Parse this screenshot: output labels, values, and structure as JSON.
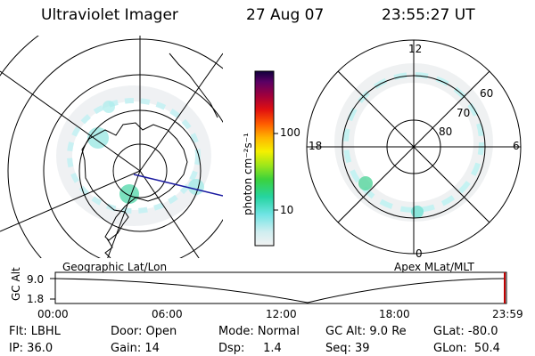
{
  "header": {
    "instrument": "Ultraviolet Imager",
    "date": "27 Aug 07",
    "time": "23:55:27 UT"
  },
  "colorbar": {
    "unit_label": "photon cm⁻²s⁻¹",
    "ticks": [
      "100",
      "10"
    ]
  },
  "left_map": {
    "caption": "Geographic Lat/Lon"
  },
  "right_map": {
    "caption": "Apex MLat/MLT",
    "mlt_labels": [
      "12",
      "18",
      "6",
      "0"
    ],
    "lat_labels": [
      "60",
      "70",
      "80"
    ]
  },
  "altitude_plot": {
    "axis_label": "GC Alt",
    "y_ticks": [
      "9.0",
      "1.8"
    ],
    "x_ticks": [
      "00:00",
      "06:00",
      "12:00",
      "18:00",
      "23:59"
    ]
  },
  "status": {
    "filter": "Flt: LBHL",
    "door": "Door: Open",
    "mode": "Mode: Normal",
    "gc_alt": "GC Alt: 9.0 Re",
    "glat": "GLat: -80.0",
    "ip": "IP: 36.0",
    "gain": "Gain: 14",
    "dsp": "Dsp:     1.4",
    "seq": "Seq: 39",
    "glon": "GLon:  50.4"
  }
}
